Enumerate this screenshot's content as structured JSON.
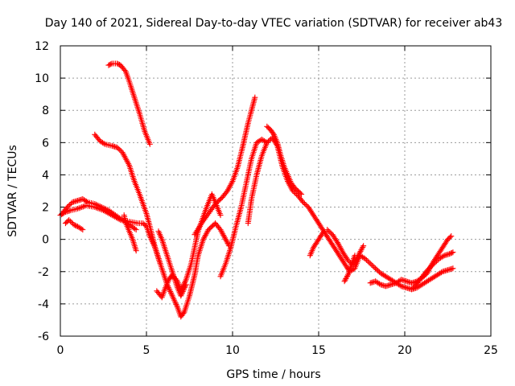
{
  "chart_data": {
    "type": "scatter",
    "title": "Day 140 of 2021, Sidereal Day-to-day VTEC variation (SDTVAR) for receiver ab43",
    "xlabel": "GPS time / hours",
    "ylabel": "SDTVAR / TECUs",
    "xlim": [
      0,
      25
    ],
    "ylim": [
      -6,
      12
    ],
    "xticks": [
      0,
      5,
      10,
      15,
      20,
      25
    ],
    "yticks": [
      -6,
      -4,
      -2,
      0,
      2,
      4,
      6,
      8,
      10,
      12
    ],
    "grid": true,
    "marker": "plus",
    "color": "#ff0000",
    "series": [
      {
        "name": "trace-1",
        "x": [
          0,
          0.3,
          0.6,
          1,
          1.5,
          2,
          2.5,
          3,
          3.5,
          4,
          4.5,
          4.8,
          5.0,
          5.2,
          5.5,
          5.8,
          6.2,
          6.5,
          6.8,
          7.0,
          7.2,
          7.5,
          7.8,
          8.0,
          8.3,
          8.6,
          9.0,
          9.3,
          9.6,
          9.8
        ],
        "y": [
          1.5,
          1.7,
          1.8,
          1.9,
          2.1,
          2.0,
          1.8,
          1.5,
          1.2,
          1.1,
          1.0,
          1.0,
          0.8,
          0.2,
          -0.5,
          -1.5,
          -2.8,
          -3.5,
          -4.2,
          -4.8,
          -4.5,
          -3.5,
          -2.2,
          -1.0,
          0.0,
          0.6,
          1.0,
          0.6,
          0.0,
          -0.4
        ]
      },
      {
        "name": "trace-2",
        "x": [
          0.1,
          0.4,
          0.7,
          1.0,
          1.3,
          1.6,
          2.0,
          2.4,
          2.8,
          3.2,
          3.6,
          4.0,
          4.4
        ],
        "y": [
          1.6,
          2.0,
          2.3,
          2.4,
          2.5,
          2.3,
          2.2,
          2.0,
          1.8,
          1.5,
          1.2,
          0.9,
          0.6
        ]
      },
      {
        "name": "trace-3",
        "x": [
          0.3,
          0.5,
          0.8,
          1.0,
          1.3
        ],
        "y": [
          1.0,
          1.2,
          0.9,
          0.8,
          0.6
        ]
      },
      {
        "name": "trace-4",
        "x": [
          2.0,
          2.3,
          2.6,
          3.0,
          3.3,
          3.6,
          4.0,
          4.3,
          4.6,
          4.8,
          5.0,
          5.2,
          5.5,
          5.8
        ],
        "y": [
          6.5,
          6.1,
          5.9,
          5.8,
          5.7,
          5.4,
          4.6,
          3.6,
          2.8,
          2.2,
          1.6,
          0.8,
          -0.5,
          -1.5
        ]
      },
      {
        "name": "trace-5",
        "x": [
          2.8,
          3.0,
          3.3,
          3.5,
          3.8,
          4.0,
          4.3,
          4.6,
          4.9,
          5.2
        ],
        "y": [
          10.8,
          10.9,
          10.9,
          10.8,
          10.4,
          9.8,
          8.8,
          7.8,
          6.7,
          5.9
        ]
      },
      {
        "name": "trace-6",
        "x": [
          3.7,
          3.8,
          4.0,
          4.2,
          4.4
        ],
        "y": [
          1.5,
          1.0,
          0.5,
          0.0,
          -0.7
        ]
      },
      {
        "name": "trace-7",
        "x": [
          5.6,
          5.9,
          6.1,
          6.3,
          6.5,
          6.8,
          7.0,
          7.3,
          7.6,
          8.0,
          8.5,
          8.8,
          9.0,
          9.3
        ],
        "y": [
          -3.2,
          -3.6,
          -3.0,
          -2.5,
          -2.2,
          -2.6,
          -3.2,
          -2.5,
          -1.5,
          0.5,
          2.0,
          2.8,
          2.3,
          1.5
        ]
      },
      {
        "name": "trace-8",
        "x": [
          5.7,
          5.9,
          6.2,
          6.5,
          6.8,
          7.0,
          7.3
        ],
        "y": [
          0.5,
          0.0,
          -1.0,
          -2.0,
          -3.0,
          -3.5,
          -2.8
        ]
      },
      {
        "name": "trace-9",
        "x": [
          7.8,
          8.2,
          8.6,
          9.0,
          9.4,
          9.7,
          10.0,
          10.3,
          10.6,
          10.9,
          11.1,
          11.3
        ],
        "y": [
          0.3,
          1.0,
          1.6,
          2.2,
          2.6,
          3.0,
          3.6,
          4.5,
          5.8,
          7.2,
          8.0,
          8.8
        ]
      },
      {
        "name": "trace-10",
        "x": [
          9.3,
          9.6,
          9.9,
          10.2,
          10.5,
          10.8,
          11.1,
          11.4,
          11.7,
          12.0
        ],
        "y": [
          -2.3,
          -1.5,
          -0.5,
          0.8,
          2.0,
          3.5,
          5.0,
          6.0,
          6.2,
          6.0
        ]
      },
      {
        "name": "trace-11",
        "x": [
          10.9,
          11.1,
          11.4,
          11.7,
          12.0,
          12.3,
          12.6,
          12.9,
          13.2,
          13.5,
          13.8,
          14.1,
          14.4,
          14.7,
          15.0,
          15.3,
          15.6,
          15.9,
          16.2,
          16.5,
          16.8,
          17.1,
          17.4,
          17.7,
          18.0,
          18.3,
          18.6,
          18.9,
          19.2,
          19.5,
          19.8,
          20.1,
          20.4,
          20.7,
          21.0,
          21.3,
          21.6,
          21.9,
          22.2,
          22.5,
          22.8
        ],
        "y": [
          1.0,
          2.5,
          4.0,
          5.2,
          6.0,
          6.3,
          5.8,
          4.5,
          3.6,
          3.0,
          2.7,
          2.3,
          2.0,
          1.5,
          1.0,
          0.5,
          0.0,
          -0.5,
          -1.0,
          -1.5,
          -2.0,
          -1.8,
          -1.0,
          -1.2,
          -1.5,
          -1.8,
          -2.1,
          -2.3,
          -2.5,
          -2.7,
          -2.9,
          -3.0,
          -3.1,
          -3.0,
          -2.8,
          -2.6,
          -2.4,
          -2.2,
          -2.0,
          -1.9,
          -1.8
        ]
      },
      {
        "name": "trace-12",
        "x": [
          12.0,
          12.2,
          12.4,
          12.6,
          12.8,
          13.0,
          13.2,
          13.4,
          13.6,
          13.8,
          14.0
        ],
        "y": [
          7.0,
          6.8,
          6.5,
          6.0,
          5.2,
          4.5,
          4.0,
          3.5,
          3.2,
          3.0,
          2.8
        ]
      },
      {
        "name": "trace-13",
        "x": [
          14.5,
          14.7,
          15.0,
          15.3
        ],
        "y": [
          -1.0,
          -0.5,
          0.0,
          0.5
        ]
      },
      {
        "name": "trace-14",
        "x": [
          15.5,
          15.8,
          16.1,
          16.4,
          16.7,
          17.0,
          17.3,
          17.6
        ],
        "y": [
          0.6,
          0.3,
          -0.2,
          -0.8,
          -1.3,
          -1.6,
          -1.0,
          -0.4
        ]
      },
      {
        "name": "trace-15",
        "x": [
          16.5,
          16.7,
          16.9,
          17.1
        ],
        "y": [
          -2.6,
          -2.2,
          -1.6,
          -1.0
        ]
      },
      {
        "name": "trace-16",
        "x": [
          18.0,
          18.3,
          18.6,
          18.9,
          19.2,
          19.5,
          19.8,
          20.1,
          20.4,
          20.7,
          21.0,
          21.3,
          21.6,
          21.9,
          22.2,
          22.5,
          22.7
        ],
        "y": [
          -2.7,
          -2.6,
          -2.8,
          -2.9,
          -2.8,
          -2.7,
          -2.5,
          -2.6,
          -2.7,
          -2.6,
          -2.4,
          -2.1,
          -1.5,
          -1.0,
          -0.5,
          0.0,
          0.2
        ]
      },
      {
        "name": "trace-17",
        "x": [
          20.5,
          20.8,
          21.1,
          21.4,
          21.7,
          22.0,
          22.3,
          22.6,
          22.8
        ],
        "y": [
          -3.0,
          -2.6,
          -2.2,
          -1.8,
          -1.5,
          -1.2,
          -1.0,
          -0.9,
          -0.8
        ]
      }
    ]
  }
}
